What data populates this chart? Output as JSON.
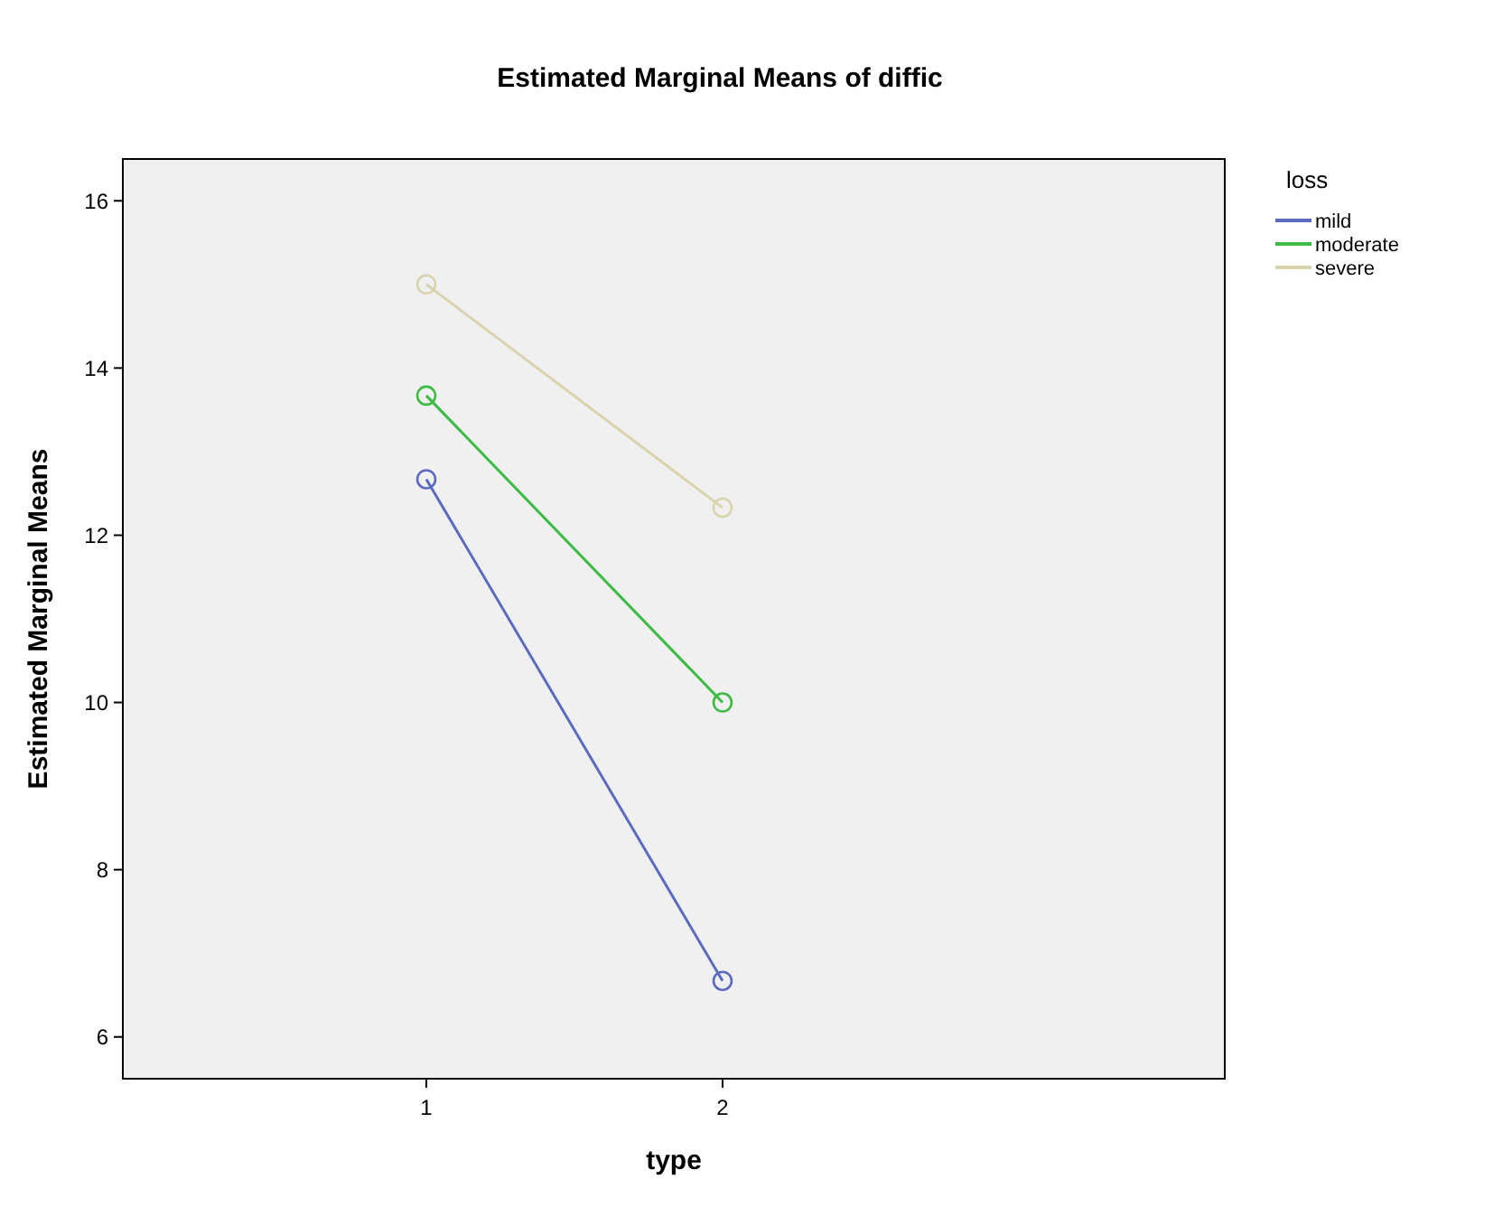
{
  "chart_data": {
    "type": "line",
    "title": "Estimated Marginal Means of diffic",
    "xlabel": "type",
    "ylabel": "Estimated Marginal Means",
    "legend_title": "loss",
    "categories": [
      "1",
      "2"
    ],
    "series": [
      {
        "name": "mild",
        "color": "#5b6cc0",
        "values": [
          12.67,
          6.67
        ]
      },
      {
        "name": "moderate",
        "color": "#3dbb45",
        "values": [
          13.67,
          10
        ]
      },
      {
        "name": "severe",
        "color": "#d9d3ae",
        "values": [
          15,
          12.33
        ]
      }
    ],
    "ylim": [
      5.5,
      16.5
    ],
    "yticks": [
      6,
      8,
      10,
      12,
      14,
      16
    ],
    "marker": "circle",
    "legend": "top right",
    "grid": false
  }
}
